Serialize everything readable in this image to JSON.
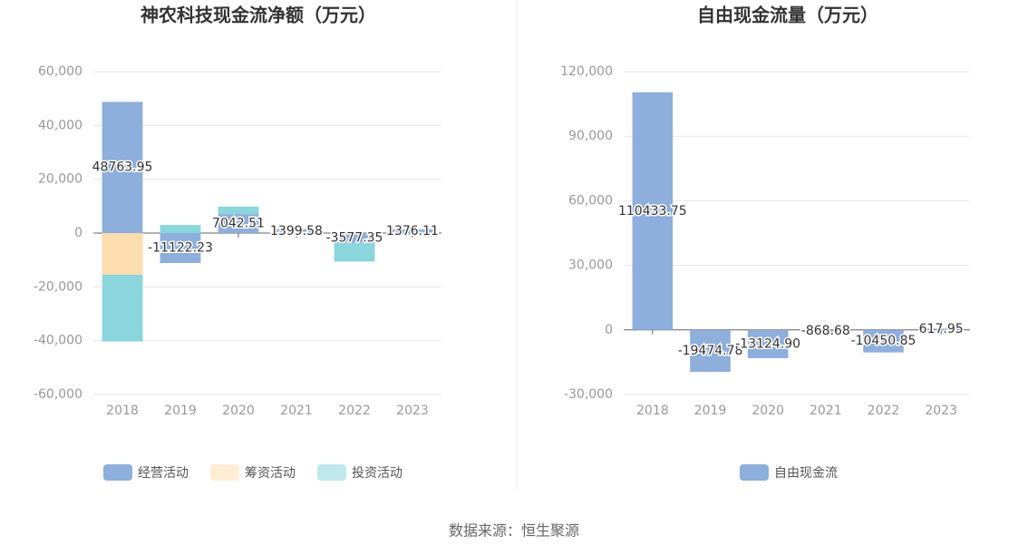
{
  "chart_data": [
    {
      "type": "stacked_bar",
      "title": "神农科技现金流净额（万元）",
      "categories": [
        "2018",
        "2019",
        "2020",
        "2021",
        "2022",
        "2023"
      ],
      "series": [
        {
          "name": "经营活动",
          "color": "#8eaedc",
          "values": [
            48763.95,
            -11122.23,
            7042.51,
            1399.58,
            -3577.35,
            1376.11
          ]
        },
        {
          "name": "筹资活动",
          "color": "#fddcae",
          "values": [
            -15500,
            0,
            0,
            0,
            0,
            0
          ]
        },
        {
          "name": "投资活动",
          "color": "#8ad6dc",
          "values": [
            -24800,
            3000,
            2800,
            0,
            -7000,
            -600
          ]
        }
      ],
      "labeled_series": 0,
      "ylim": [
        -60000,
        60000
      ],
      "yticks": [
        {
          "value": -60000,
          "label": "-60,000"
        },
        {
          "value": -40000,
          "label": "-40,000"
        },
        {
          "value": -20000,
          "label": "-20,000"
        },
        0,
        {
          "value": 20000,
          "label": "20,000"
        },
        {
          "value": 40000,
          "label": "40,000"
        },
        {
          "value": 60000,
          "label": "60,000"
        }
      ],
      "grid": true
    },
    {
      "type": "bar",
      "title": "自由现金流量（万元）",
      "categories": [
        "2018",
        "2019",
        "2020",
        "2021",
        "2022",
        "2023"
      ],
      "series": [
        {
          "name": "自由现金流",
          "color": "#8eaedc",
          "values": [
            110433.75,
            -19474.78,
            -13124.9,
            -868.68,
            -10450.85,
            617.95
          ],
          "value_labels": [
            "110433.75",
            "-19474.78",
            "-13124.90",
            "-868.68",
            "-10450.85",
            "617.95"
          ]
        }
      ],
      "labeled_series": 0,
      "ylim": [
        -30000,
        120000
      ],
      "yticks": [
        {
          "value": -30000,
          "label": "-30,000"
        },
        0,
        {
          "value": 30000,
          "label": "30,000"
        },
        {
          "value": 60000,
          "label": "60,000"
        },
        {
          "value": 90000,
          "label": "90,000"
        },
        {
          "value": 120000,
          "label": "120,000"
        }
      ],
      "grid": true
    }
  ],
  "source": "数据来源：恒生聚源"
}
